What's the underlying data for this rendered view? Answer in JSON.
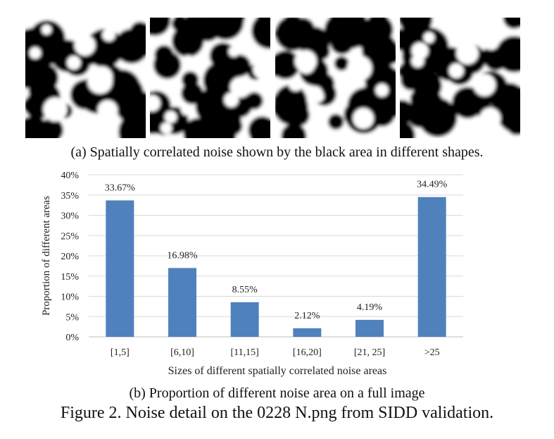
{
  "figure": {
    "caption_a": "(a) Spatially correlated noise shown by the black area in different shapes.",
    "caption_b": "(b) Proportion of different noise area on a full image",
    "figure_caption": "Figure 2. Noise detail on the 0228 N.png from SIDD validation."
  },
  "panels": [
    {
      "image": "noise-patch-1"
    },
    {
      "image": "noise-patch-2"
    },
    {
      "image": "noise-patch-3"
    },
    {
      "image": "noise-patch-4"
    }
  ],
  "chart_data": {
    "type": "bar",
    "title": "",
    "xlabel": "Sizes of different spatially correlated noise areas",
    "ylabel": "Proportion of different areas",
    "categories": [
      "[1,5]",
      "[6,10]",
      "[11,15]",
      "[16,20]",
      "[21, 25]",
      ">25"
    ],
    "values": [
      33.67,
      16.98,
      8.55,
      2.12,
      4.19,
      34.49
    ],
    "data_labels": [
      "33.67%",
      "16.98%",
      "8.55%",
      "2.12%",
      "4.19%",
      "34.49%"
    ],
    "ylim": [
      0,
      40
    ],
    "yticks": [
      "0%",
      "5%",
      "10%",
      "15%",
      "20%",
      "25%",
      "30%",
      "35%",
      "40%"
    ],
    "grid": true,
    "bar_color": "#4f81bd"
  }
}
